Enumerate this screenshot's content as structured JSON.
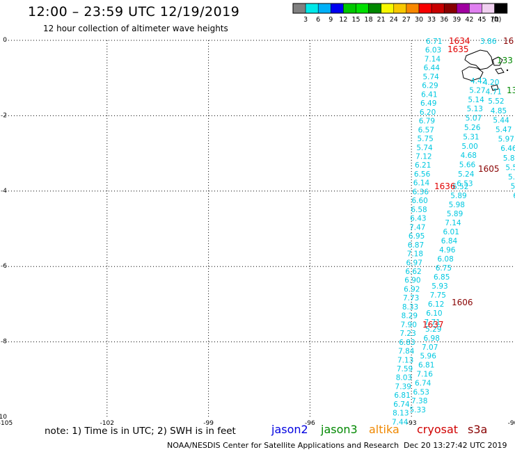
{
  "header": {
    "title": "12:00 – 23:59 UTC 12/19/2019",
    "subtitle": "12 hour collection of altimeter wave heights"
  },
  "legend": {
    "unit": "(ft)",
    "bins": [
      {
        "color": "#808080",
        "label": "3"
      },
      {
        "color": "#00e8e8",
        "label": "6"
      },
      {
        "color": "#00b0f8",
        "label": "9"
      },
      {
        "color": "#0000f0",
        "label": "12"
      },
      {
        "color": "#00c800",
        "label": "15"
      },
      {
        "color": "#00e000",
        "label": "18"
      },
      {
        "color": "#008800",
        "label": "21"
      },
      {
        "color": "#f8f800",
        "label": "24"
      },
      {
        "color": "#f8c800",
        "label": "27"
      },
      {
        "color": "#f88800",
        "label": "30"
      },
      {
        "color": "#f80000",
        "label": "33"
      },
      {
        "color": "#c80000",
        "label": "36"
      },
      {
        "color": "#880000",
        "label": "39"
      },
      {
        "color": "#a000a0",
        "label": "42"
      },
      {
        "color": "#e080f0",
        "label": "45"
      },
      {
        "color": "#f0d0f0",
        "label": "70"
      },
      {
        "color": "#000000",
        "label": ""
      }
    ]
  },
  "axes": {
    "lat_labels": [
      "0",
      "-2",
      "-4",
      "-6",
      "-8",
      "-10"
    ],
    "lon_labels": [
      "-105",
      "-102",
      "-99",
      "-96",
      "-93",
      "-90"
    ]
  },
  "tracks": {
    "track_a_color": "#00c8e0",
    "track_a": [
      "6.71",
      "6.03",
      "7.14",
      "6.44",
      "5.74",
      "6.29",
      "6.41",
      "6.49",
      "6.20",
      "6.79",
      "6.57",
      "5.75",
      "5.74",
      "7.12",
      "6.21",
      "6.56",
      "6.14",
      "6.36",
      "6.60",
      "6.58",
      "6.43",
      "7.47",
      "6.95",
      "6.87",
      "7.18",
      "6.97",
      "6.62",
      "6.90",
      "6.92",
      "7.73",
      "8.33",
      "8.29",
      "7.90",
      "7.23",
      "6.83",
      "7.84",
      "7.13",
      "7.59",
      "8.03",
      "7.39",
      "6.81",
      "6.74",
      "8.13",
      "7.44"
    ],
    "track_b": [
      "5.29",
      "6.98",
      "7.07",
      "5.96",
      "6.81",
      "7.16",
      "6.74",
      "6.53",
      "7.38",
      "5.33"
    ],
    "track_c": [
      "6.52",
      "5.89",
      "5.98",
      "5.89",
      "7.14",
      "6.01",
      "6.84",
      "4.96",
      "6.08",
      "6.75",
      "6.85",
      "5.93",
      "7.75",
      "6.12",
      "6.10",
      "7.71"
    ],
    "track_d": [
      "4.42",
      "5.27",
      "5.14",
      "5.13",
      "5.07",
      "5.26",
      "5.31",
      "5.00",
      "4.68",
      "5.66",
      "5.24",
      "6.53"
    ],
    "track_e": [
      "4.20",
      "4.71",
      "5.52",
      "4.85",
      "5.44",
      "5.47",
      "5.97",
      "6.46",
      "5.8",
      "5.5",
      "5.",
      "5",
      "6"
    ],
    "top_right": [
      "3.86"
    ],
    "time_labels_red": [
      "1634",
      "1635",
      "1636",
      "1637"
    ],
    "time_labels_dark": [
      "1605",
      "1606",
      "16"
    ],
    "time_labels_green": [
      "133",
      "13"
    ]
  },
  "footer": {
    "note": "note: 1) Time is in UTC; 2) SWH is in feet",
    "missions": [
      {
        "name": "jason2",
        "color": "#0000e0"
      },
      {
        "name": "jason3",
        "color": "#008800"
      },
      {
        "name": "altika",
        "color": "#f08800"
      },
      {
        "name": "cryosat",
        "color": "#d00000"
      },
      {
        "name": "s3a",
        "color": "#880000"
      }
    ],
    "credit": "NOAA/NESDIS Center for Satellite Applications and Research",
    "timestamp": "Dec 20 13:27:42 UTC 2019"
  }
}
